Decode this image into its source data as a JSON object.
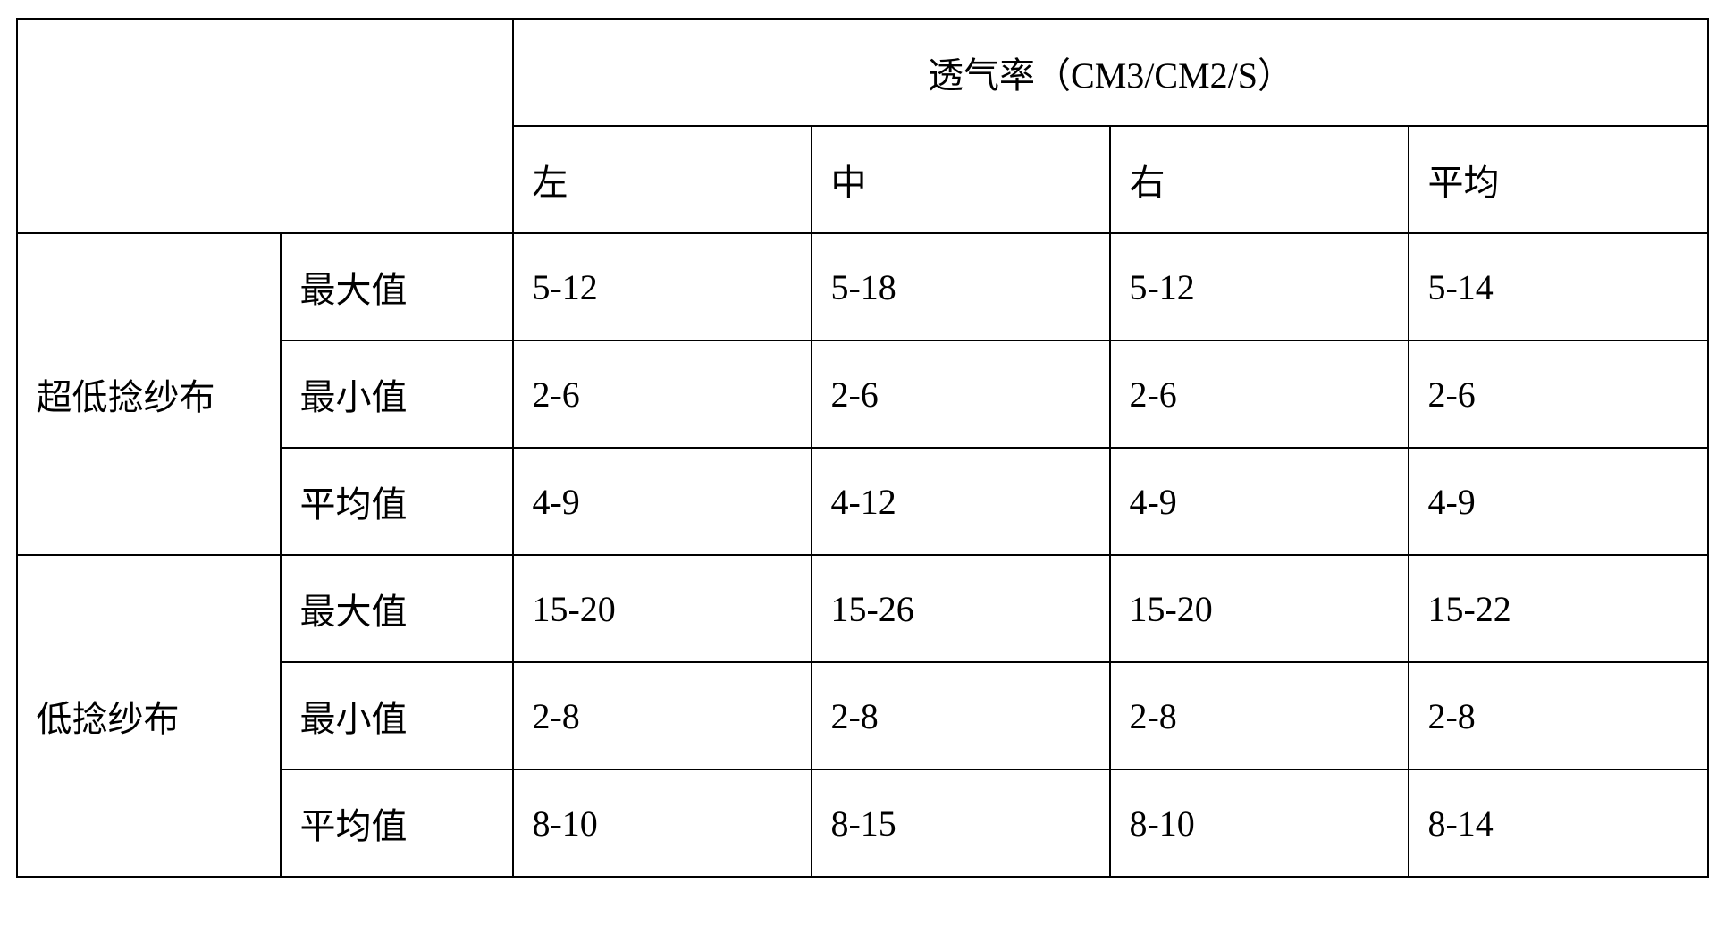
{
  "table": {
    "header": {
      "title": "透气率（CM3/CM2/S）",
      "columns": [
        "左",
        "中",
        "右",
        "平均"
      ]
    },
    "groups": [
      {
        "label": "超低捻纱布",
        "rows": [
          {
            "metric": "最大值",
            "values": [
              "5-12",
              "5-18",
              "5-12",
              "5-14"
            ]
          },
          {
            "metric": "最小值",
            "values": [
              "2-6",
              "2-6",
              "2-6",
              "2-6"
            ]
          },
          {
            "metric": "平均值",
            "values": [
              "4-9",
              "4-12",
              "4-9",
              "4-9"
            ]
          }
        ]
      },
      {
        "label": "低捻纱布",
        "rows": [
          {
            "metric": "最大值",
            "values": [
              "15-20",
              "15-26",
              "15-20",
              "15-22"
            ]
          },
          {
            "metric": "最小值",
            "values": [
              "2-8",
              "2-8",
              "2-8",
              "2-8"
            ]
          },
          {
            "metric": "平均值",
            "values": [
              "8-10",
              "8-15",
              "8-10",
              "8-14"
            ]
          }
        ]
      }
    ],
    "styling": {
      "border_color": "#000000",
      "border_width": 2,
      "background_color": "#ffffff",
      "text_color": "#000000",
      "font_size": 40,
      "font_family": "SimSun",
      "cell_padding_vertical": 30,
      "cell_padding_horizontal": 20,
      "col_label_width": 295,
      "col_metric_width": 260,
      "col_data_width": 334
    }
  }
}
